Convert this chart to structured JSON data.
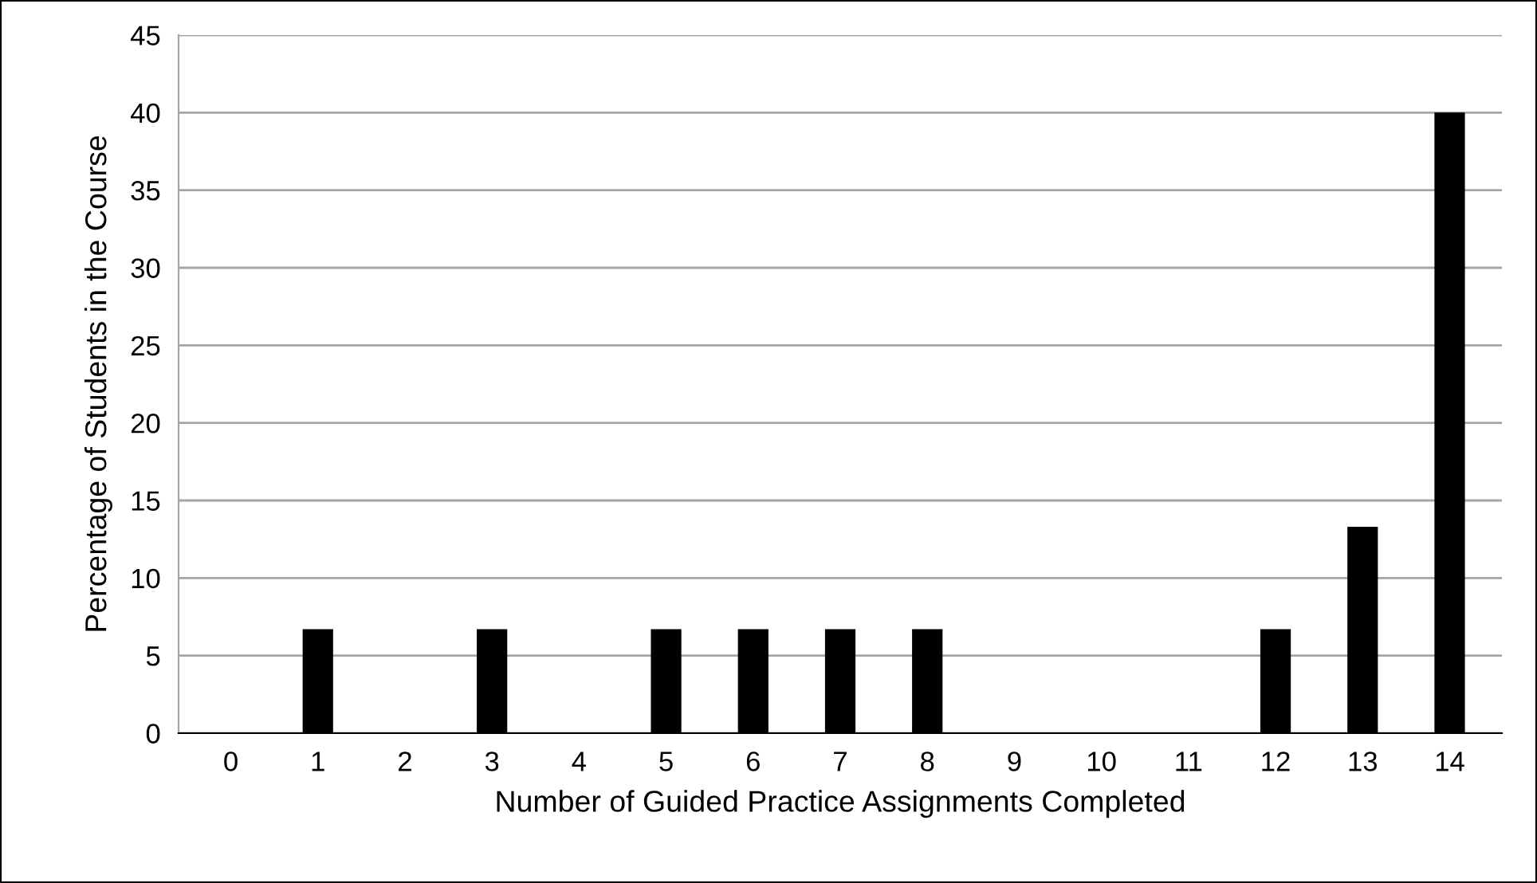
{
  "chart_data": {
    "type": "bar",
    "xlabel": "Number of Guided Practice Assignments Completed",
    "ylabel": "Percentage of Students in the Course",
    "categories": [
      "0",
      "1",
      "2",
      "3",
      "4",
      "5",
      "6",
      "7",
      "8",
      "9",
      "10",
      "11",
      "12",
      "13",
      "14"
    ],
    "values": [
      0,
      6.7,
      0,
      6.7,
      0,
      6.7,
      6.7,
      6.7,
      6.7,
      0,
      0,
      0,
      6.7,
      13.3,
      40
    ],
    "color": "#000000",
    "ylim": [
      0,
      45
    ],
    "yticks": [
      0,
      5,
      10,
      15,
      20,
      25,
      30,
      35,
      40,
      45
    ],
    "grid": "y"
  }
}
